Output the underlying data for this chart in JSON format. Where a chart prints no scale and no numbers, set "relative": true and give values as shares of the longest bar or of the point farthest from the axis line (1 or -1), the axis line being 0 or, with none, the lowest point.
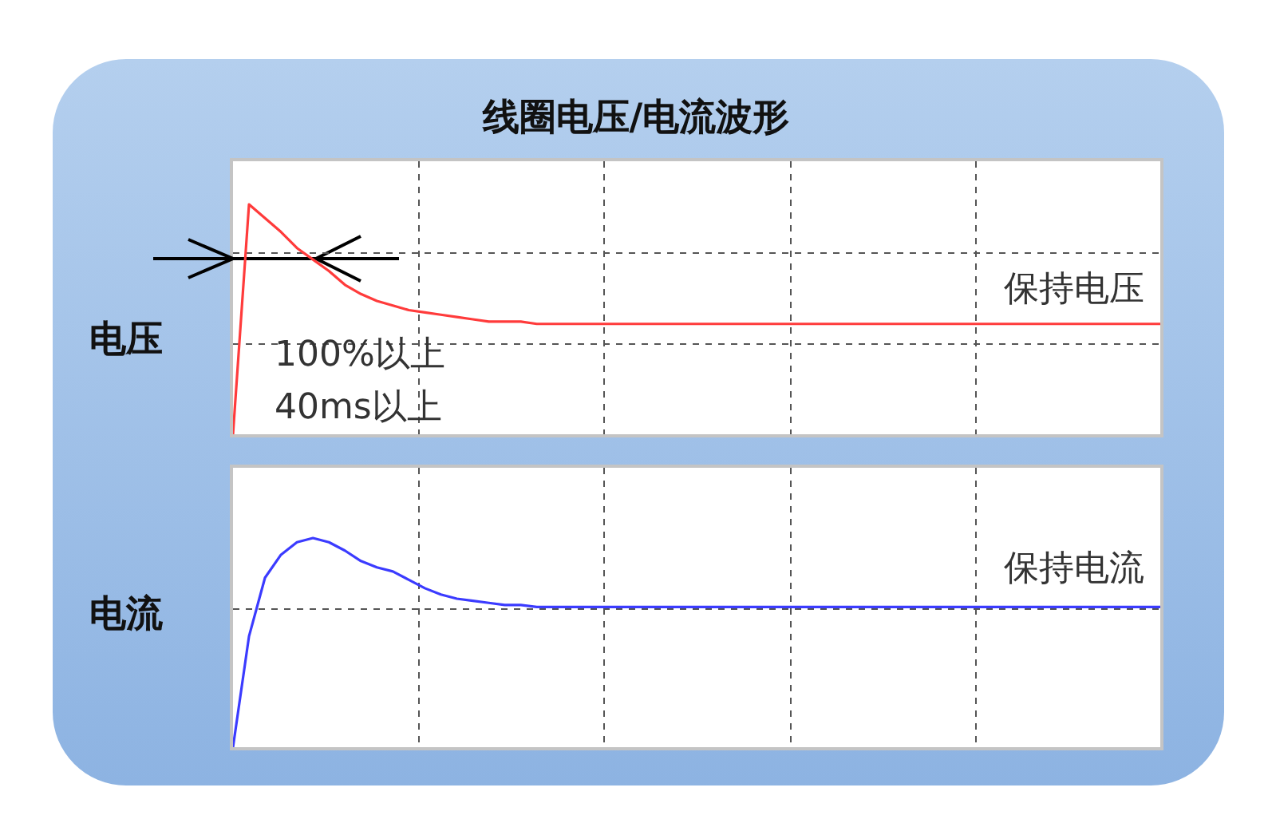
{
  "chart_data": [
    {
      "type": "line",
      "title": "线圈电压/电流波形",
      "ylabel": "电压",
      "relative": true,
      "grid": true,
      "legend": false,
      "marker": "none",
      "line_style": "solid",
      "tick_labels": false,
      "annotations": [
        "保持电压",
        "100%以上",
        "40ms以上"
      ],
      "categories": [
        null,
        null,
        null,
        null,
        null,
        null,
        null,
        null,
        null,
        null,
        null,
        null,
        null,
        null,
        null,
        null,
        null,
        null,
        null,
        null,
        null,
        null,
        null,
        null,
        null,
        null,
        null,
        null,
        null,
        null,
        null,
        null,
        null,
        null,
        null,
        null,
        null,
        null,
        null,
        null,
        null,
        null,
        null,
        null,
        null,
        null,
        null,
        null,
        null,
        null,
        null,
        null,
        null,
        null,
        null,
        null,
        null,
        null,
        null
      ],
      "series": [
        {
          "color": "#ff3b3b",
          "values": [
            0,
            1,
            0.94,
            0.88,
            0.81,
            0.76,
            0.71,
            0.65,
            0.61,
            0.58,
            0.56,
            0.54,
            0.53,
            0.52,
            0.51,
            0.5,
            0.49,
            0.49,
            0.49,
            0.48,
            0.48,
            0.48,
            0.48,
            0.48,
            0.48,
            0.48,
            0.48,
            0.48,
            0.48,
            0.48,
            0.48,
            0.48,
            0.48,
            0.48,
            0.48,
            0.48,
            0.48,
            0.48,
            0.48,
            0.48,
            0.48,
            0.48,
            0.48,
            0.48,
            0.48,
            0.48,
            0.48,
            0.48,
            0.48,
            0.48,
            0.48,
            0.48,
            0.48,
            0.48,
            0.48,
            0.48,
            0.48,
            0.48,
            0.48
          ]
        }
      ]
    },
    {
      "type": "line",
      "ylabel": "电流",
      "relative": true,
      "grid": true,
      "legend": false,
      "marker": "none",
      "line_style": "solid",
      "tick_labels": false,
      "annotations": [
        "保持电流"
      ],
      "categories": [
        null,
        null,
        null,
        null,
        null,
        null,
        null,
        null,
        null,
        null,
        null,
        null,
        null,
        null,
        null,
        null,
        null,
        null,
        null,
        null,
        null,
        null,
        null,
        null,
        null,
        null,
        null,
        null,
        null,
        null,
        null,
        null,
        null,
        null,
        null,
        null,
        null,
        null,
        null,
        null,
        null,
        null,
        null,
        null,
        null,
        null,
        null,
        null,
        null,
        null,
        null,
        null,
        null,
        null,
        null,
        null,
        null,
        null,
        null
      ],
      "series": [
        {
          "color": "#3b3bff",
          "values": [
            0,
            0.53,
            0.81,
            0.92,
            0.98,
            1,
            0.98,
            0.94,
            0.89,
            0.86,
            0.84,
            0.8,
            0.76,
            0.73,
            0.71,
            0.7,
            0.69,
            0.68,
            0.68,
            0.67,
            0.67,
            0.67,
            0.67,
            0.67,
            0.67,
            0.67,
            0.67,
            0.67,
            0.67,
            0.67,
            0.67,
            0.67,
            0.67,
            0.67,
            0.67,
            0.67,
            0.67,
            0.67,
            0.67,
            0.67,
            0.67,
            0.67,
            0.67,
            0.67,
            0.67,
            0.67,
            0.67,
            0.67,
            0.67,
            0.67,
            0.67,
            0.67,
            0.67,
            0.67,
            0.67,
            0.67,
            0.67,
            0.67,
            0.67
          ]
        }
      ]
    }
  ]
}
